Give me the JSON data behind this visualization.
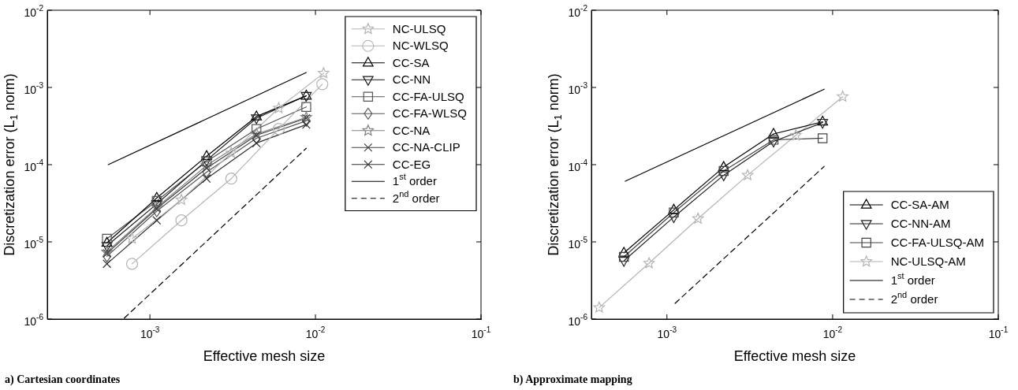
{
  "chart_data": [
    {
      "type": "line",
      "xlabel": "Effective mesh size",
      "ylabel": "Discretization error (L$_{1}$ norm)",
      "log": "xy",
      "grid": false,
      "legend": "top right",
      "xlim": [
        0.00024,
        0.1
      ],
      "ylim": [
        1e-06,
        0.01
      ],
      "xticks": [
        {
          "value": 0.001,
          "label": "10$^{-3}$"
        },
        {
          "value": 0.01,
          "label": "10$^{-2}$"
        },
        {
          "value": 0.1,
          "label": "10$^{-1}$"
        }
      ],
      "yticks": [
        {
          "value": 1e-06,
          "label": "10$^{-6}$"
        },
        {
          "value": 1e-05,
          "label": "10$^{-5}$"
        },
        {
          "value": 0.0001,
          "label": "10$^{-4}$"
        },
        {
          "value": 0.001,
          "label": "10$^{-3}$"
        },
        {
          "value": 0.01,
          "label": "10$^{-2}$"
        }
      ],
      "series": [
        {
          "name": "NC-ULSQ",
          "color": "#b4b4b4",
          "marker": "star",
          "x": [
            0.00078,
            0.00155,
            0.0031,
            0.006,
            0.0112
          ],
          "values": [
            1.1e-05,
            3.5e-05,
            0.000142,
            0.00054,
            0.00153
          ]
        },
        {
          "name": "NC-WLSQ",
          "color": "#b4b4b4",
          "marker": "circle",
          "x": [
            0.00078,
            0.00155,
            0.0031,
            0.006,
            0.011
          ],
          "values": [
            5.2e-06,
            1.9e-05,
            6.6e-05,
            0.00029,
            0.0011
          ]
        },
        {
          "name": "CC-SA",
          "color": "#000000",
          "marker": "triangle",
          "x": [
            0.00055,
            0.0011,
            0.0022,
            0.0044,
            0.0088
          ],
          "values": [
            9.7e-06,
            3.7e-05,
            0.000129,
            0.00042,
            0.00078
          ]
        },
        {
          "name": "CC-NN",
          "color": "#1a1a1a",
          "marker": "triangle-down",
          "x": [
            0.00055,
            0.0011,
            0.0022,
            0.0044,
            0.0088
          ],
          "values": [
            8.9e-06,
            3.1e-05,
            0.000114,
            0.0004,
            0.00078
          ]
        },
        {
          "name": "CC-FA-ULSQ",
          "color": "#555555",
          "marker": "square",
          "x": [
            0.00055,
            0.0011,
            0.0022,
            0.0044,
            0.0088
          ],
          "values": [
            1.1e-05,
            3.4e-05,
            0.00011,
            0.00029,
            0.00056
          ]
        },
        {
          "name": "CC-FA-WLSQ",
          "color": "#555555",
          "marker": "diamond",
          "x": [
            0.00055,
            0.0011,
            0.0022,
            0.0044,
            0.0088
          ],
          "values": [
            6.5e-06,
            2.5e-05,
            8e-05,
            0.00022,
            0.00037
          ]
        },
        {
          "name": "CC-NA",
          "color": "#808080",
          "marker": "star",
          "x": [
            0.00055,
            0.0011,
            0.0022,
            0.0044,
            0.0088
          ],
          "values": [
            7.4e-06,
            2.8e-05,
            9.8e-05,
            0.00025,
            0.00041
          ]
        },
        {
          "name": "CC-NA-CLIP",
          "color": "#404040",
          "marker": "cross",
          "x": [
            0.00055,
            0.0011,
            0.0022,
            0.0044,
            0.0088
          ],
          "values": [
            7.1e-06,
            2.7e-05,
            9e-05,
            0.00024,
            0.0004
          ]
        },
        {
          "name": "CC-EG",
          "color": "#303030",
          "marker": "cross",
          "x": [
            0.00055,
            0.0011,
            0.0022,
            0.0044,
            0.0088
          ],
          "values": [
            5.2e-06,
            1.9e-05,
            6.6e-05,
            0.00019,
            0.00033
          ]
        },
        {
          "name": "1$^{st}$ order",
          "color": "#000000",
          "marker": "none",
          "line_style": "solid",
          "x": [
            0.00056,
            0.0088
          ],
          "values": [
            0.0001,
            0.00156
          ]
        },
        {
          "name": "2$^{nd}$ order",
          "color": "#000000",
          "marker": "none",
          "line_style": "dashed",
          "x": [
            0.0007,
            0.0088
          ],
          "values": [
            1.03e-06,
            0.000163
          ]
        }
      ],
      "annotations": [
        "a) Cartesian coordinates"
      ]
    },
    {
      "type": "line",
      "xlabel": "Effective mesh size",
      "ylabel": "Discretization error (L$_{1}$ norm)",
      "log": "xy",
      "grid": false,
      "legend": "bottom right",
      "xlim": [
        0.00035,
        0.1
      ],
      "ylim": [
        1e-06,
        0.01
      ],
      "xticks": [
        {
          "value": 0.001,
          "label": "10$^{-3}$"
        },
        {
          "value": 0.01,
          "label": "10$^{-2}$"
        },
        {
          "value": 0.1,
          "label": "10$^{-1}$"
        }
      ],
      "yticks": [
        {
          "value": 1e-06,
          "label": "10$^{-6}$"
        },
        {
          "value": 1e-05,
          "label": "10$^{-5}$"
        },
        {
          "value": 0.0001,
          "label": "10$^{-4}$"
        },
        {
          "value": 0.001,
          "label": "10$^{-3}$"
        },
        {
          "value": 0.01,
          "label": "10$^{-2}$"
        }
      ],
      "series": [
        {
          "name": "CC-SA-AM",
          "color": "#000000",
          "marker": "triangle",
          "x": [
            0.00055,
            0.0011,
            0.0022,
            0.0044,
            0.0087
          ],
          "values": [
            7.2e-06,
            2.6e-05,
            9.3e-05,
            0.00025,
            0.00036
          ]
        },
        {
          "name": "CC-NN-AM",
          "color": "#222222",
          "marker": "triangle-down",
          "x": [
            0.00055,
            0.0011,
            0.0022,
            0.0044,
            0.0087
          ],
          "values": [
            5.7e-06,
            2.1e-05,
            7.3e-05,
            0.0002,
            0.00035
          ]
        },
        {
          "name": "CC-FA-ULSQ-AM",
          "color": "#444444",
          "marker": "square",
          "x": [
            0.00055,
            0.0011,
            0.0022,
            0.0044,
            0.0087
          ],
          "values": [
            6.4e-06,
            2.4e-05,
            8.3e-05,
            0.00021,
            0.00022
          ]
        },
        {
          "name": "NC-ULSQ-AM",
          "color": "#b4b4b4",
          "marker": "star",
          "x": [
            0.00039,
            0.00078,
            0.00154,
            0.00307,
            0.006,
            0.0115
          ],
          "values": [
            1.41e-06,
            5.3e-06,
            2e-05,
            7.3e-05,
            0.00024,
            0.00076
          ]
        },
        {
          "name": "1$^{st}$ order",
          "color": "#000000",
          "marker": "none",
          "line_style": "solid",
          "x": [
            0.00056,
            0.0089
          ],
          "values": [
            6.1e-05,
            0.00095
          ]
        },
        {
          "name": "2$^{nd}$ order",
          "color": "#000000",
          "marker": "none",
          "line_style": "dashed",
          "x": [
            0.00112,
            0.0089
          ],
          "values": [
            1.6e-06,
            9.5e-05
          ]
        }
      ],
      "annotations": [
        "b) Approximate mapping"
      ]
    }
  ]
}
